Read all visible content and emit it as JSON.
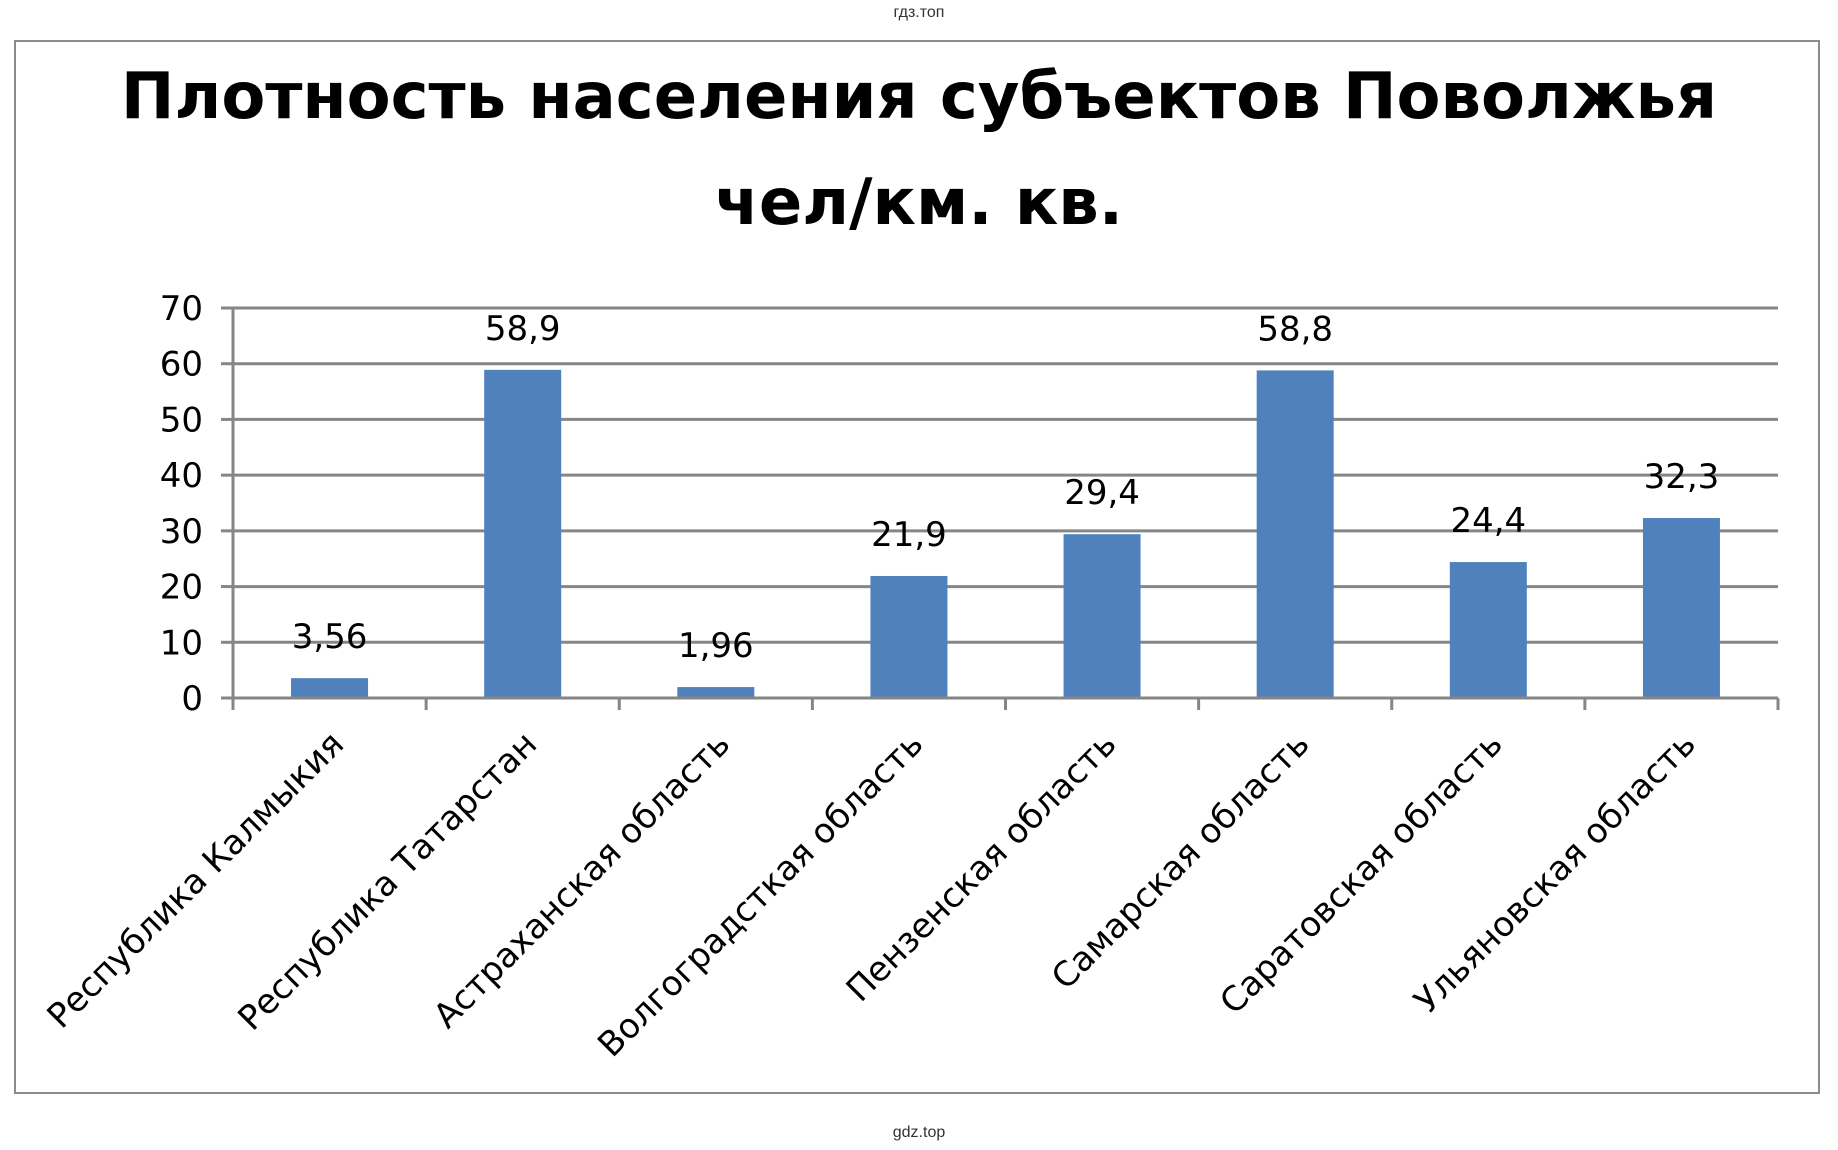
{
  "watermark_top": "гдз.топ",
  "watermark_bottom": "gdz.top",
  "colors": {
    "bar": "#4f81bd",
    "grid": "#868686",
    "frame": "#8c8c8c"
  },
  "chart_data": {
    "type": "bar",
    "title_lines": [
      "Плотность населения субъектов Поволжья",
      "чел/км. кв."
    ],
    "categories": [
      "Республика Калмыкия",
      "Республика Татарстан",
      "Астраханская область",
      "Волгоградсткая область",
      "Пензенская область",
      "Самарская область",
      "Саратовская область",
      "Ульяновская область"
    ],
    "values": [
      3.56,
      58.9,
      1.96,
      21.9,
      29.4,
      58.8,
      24.4,
      32.3
    ],
    "value_labels": [
      "3,56",
      "58,9",
      "1,96",
      "21,9",
      "29,4",
      "58,8",
      "24,4",
      "32,3"
    ],
    "ylim": [
      0,
      70
    ],
    "yticks": [
      0,
      10,
      20,
      30,
      40,
      50,
      60,
      70
    ],
    "grid": true,
    "legend": "none",
    "xlabel": "",
    "ylabel": ""
  }
}
